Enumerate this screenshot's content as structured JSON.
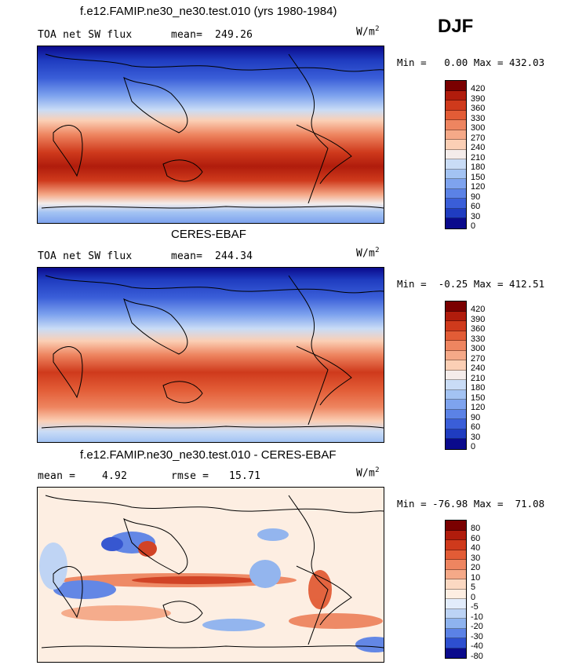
{
  "season": "DJF",
  "panels": [
    {
      "title": "f.e12.FAMIP.ne30_ne30.test.010 (yrs 1980-1984)",
      "variable": "TOA net SW flux",
      "stat_label": "mean=",
      "stat_value": "249.26",
      "units": "W/m",
      "units_exp": "2",
      "min_label": "Min =",
      "min_value": "0.00",
      "max_label": "Max =",
      "max_value": "432.03",
      "levels": [
        "420",
        "390",
        "360",
        "330",
        "300",
        "270",
        "240",
        "210",
        "180",
        "150",
        "120",
        "90",
        "60",
        "30",
        "0"
      ]
    },
    {
      "title": "CERES-EBAF",
      "variable": "TOA net SW flux",
      "stat_label": "mean=",
      "stat_value": "244.34",
      "units": "W/m",
      "units_exp": "2",
      "min_label": "Min =",
      "min_value": "-0.25",
      "max_label": "Max =",
      "max_value": "412.51",
      "levels": [
        "420",
        "390",
        "360",
        "330",
        "300",
        "270",
        "240",
        "210",
        "180",
        "150",
        "120",
        "90",
        "60",
        "30",
        "0"
      ]
    },
    {
      "title": "f.e12.FAMIP.ne30_ne30.test.010 - CERES-EBAF",
      "stat_label": "mean =",
      "stat_value": "4.92",
      "stat2_label": "rmse =",
      "stat2_value": "15.71",
      "units": "W/m",
      "units_exp": "2",
      "min_label": "Min =",
      "min_value": "-76.98",
      "max_label": "Max =",
      "max_value": "71.08",
      "levels": [
        "80",
        "60",
        "40",
        "30",
        "20",
        "10",
        "5",
        "0",
        "-5",
        "-10",
        "-20",
        "-30",
        "-40",
        "-80"
      ]
    }
  ],
  "colors": {
    "abs_scale": [
      "#7a0000",
      "#b01c0c",
      "#cf3a1c",
      "#e25c36",
      "#ee8560",
      "#f5a988",
      "#fbcfb5",
      "#f4ecea",
      "#c9dcf6",
      "#a3c3f3",
      "#7ea3ee",
      "#5b82e6",
      "#3a5ed8",
      "#1f3cc0",
      "#0a0a8c"
    ],
    "diff_scale": [
      "#7a0000",
      "#b01c0c",
      "#cf3a1c",
      "#e25c36",
      "#ee8560",
      "#f5a988",
      "#fbd8c2",
      "#fdeee2",
      "#e2ecfb",
      "#bcd3f5",
      "#8eb3ef",
      "#5b82e6",
      "#2d4fd0",
      "#0a0a8c"
    ]
  },
  "chart_data": [
    {
      "type": "heatmap",
      "title": "f.e12.FAMIP.ne30_ne30.test.010 (yrs 1980-1984)",
      "subtitle": "TOA net SW flux",
      "units": "W/m2",
      "season": "DJF",
      "mean": 249.26,
      "min": 0.0,
      "max": 432.03,
      "contour_levels": [
        0,
        30,
        60,
        90,
        120,
        150,
        180,
        210,
        240,
        270,
        300,
        330,
        360,
        390,
        420
      ]
    },
    {
      "type": "heatmap",
      "title": "CERES-EBAF",
      "subtitle": "TOA net SW flux",
      "units": "W/m2",
      "season": "DJF",
      "mean": 244.34,
      "min": -0.25,
      "max": 412.51,
      "contour_levels": [
        0,
        30,
        60,
        90,
        120,
        150,
        180,
        210,
        240,
        270,
        300,
        330,
        360,
        390,
        420
      ]
    },
    {
      "type": "heatmap",
      "title": "f.e12.FAMIP.ne30_ne30.test.010 - CERES-EBAF",
      "units": "W/m2",
      "season": "DJF",
      "mean": 4.92,
      "rmse": 15.71,
      "min": -76.98,
      "max": 71.08,
      "contour_levels": [
        -80,
        -40,
        -30,
        -20,
        -10,
        -5,
        0,
        5,
        10,
        20,
        30,
        40,
        60,
        80
      ]
    }
  ]
}
